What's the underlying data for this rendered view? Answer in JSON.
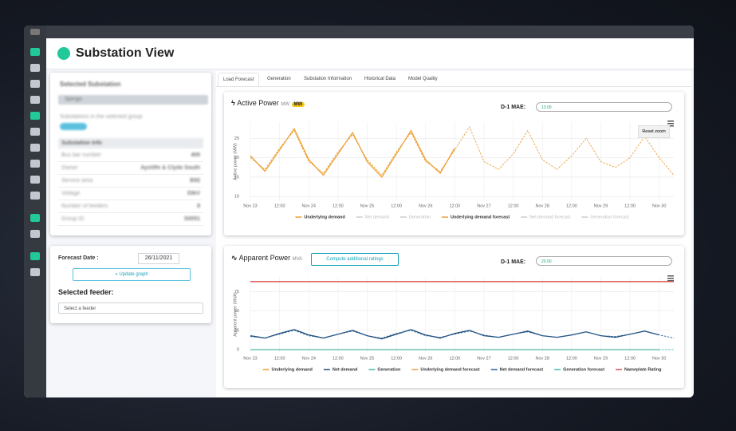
{
  "header": {
    "title": "Substation View"
  },
  "substation_panel": {
    "title": "Selected Substation",
    "dropdown": "Spingo",
    "note": "Substations in the selected group",
    "tag": "Spingo",
    "info_title": "Substation Info",
    "rows": [
      [
        "Bus bar number",
        "400"
      ],
      [
        "Owner",
        "Aycliffe & Clyde South"
      ],
      [
        "Service area",
        "B92"
      ],
      [
        "Voltage",
        "33kV"
      ],
      [
        "Number of feeders",
        "8"
      ],
      [
        "Group ID",
        "S0051"
      ]
    ]
  },
  "forecast_panel": {
    "date_label": "Forecast Date :",
    "date": "26/11/2021",
    "button": "» Update graph",
    "feeder_label": "Selected feeder:",
    "feeder_placeholder": "Select a feeder"
  },
  "tabs": [
    "Load Forecast",
    "Generation",
    "Substation Information",
    "Historical Data",
    "Model Quality"
  ],
  "chart_data": [
    {
      "type": "line",
      "title": "Active Power",
      "unit": "MW",
      "badge": "MW",
      "mae_label": "D-1 MAE:",
      "mae_value": "13.00",
      "reset": "Reset zoom",
      "y_label": "Active power (MW)",
      "grid": true,
      "categories": [
        "Nov 23",
        null,
        "12:00",
        null,
        "Nov 24",
        null,
        "12:00",
        null,
        "Nov 25",
        null,
        "12:00",
        null,
        "Nov 26",
        null,
        "12:00",
        null,
        "Nov 27",
        null,
        "12:00",
        null,
        "Nov 28",
        null,
        "12:00",
        null,
        "Nov 29",
        null,
        "12:00",
        null,
        "Nov 30",
        null
      ],
      "ylim": [
        8.8,
        29.2
      ],
      "yticks": [
        10,
        15,
        20,
        25
      ],
      "series": [
        {
          "name": "Underlying demand",
          "color": "#f0a030",
          "dashed": false,
          "visible": true,
          "values": [
            20.5,
            16.5,
            22,
            27.5,
            19.5,
            15.5,
            21,
            26.5,
            19,
            15,
            21,
            27,
            19.5,
            16,
            22.5,
            null,
            null,
            null,
            null,
            null,
            null,
            null,
            null,
            null,
            null,
            null,
            null,
            null,
            null,
            null
          ]
        },
        {
          "name": "Net demand",
          "color": "#1f4e79",
          "dashed": false,
          "visible": false,
          "values": [
            null,
            null,
            null,
            null,
            null,
            null,
            null,
            null,
            null,
            null,
            null,
            null,
            null,
            null,
            null,
            null,
            null,
            null,
            null,
            null,
            null,
            null,
            null,
            null,
            null,
            null,
            null,
            null,
            null,
            null
          ]
        },
        {
          "name": "Generation",
          "color": "#4bb8a9",
          "dashed": false,
          "visible": false,
          "values": [
            null,
            null,
            null,
            null,
            null,
            null,
            null,
            null,
            null,
            null,
            null,
            null,
            null,
            null,
            null,
            null,
            null,
            null,
            null,
            null,
            null,
            null,
            null,
            null,
            null,
            null,
            null,
            null,
            null,
            null
          ]
        },
        {
          "name": "Underlying demand forecast",
          "color": "#e8a040",
          "dashed": true,
          "visible": true,
          "values": [
            20,
            17,
            22.5,
            27,
            19,
            16,
            21.5,
            26,
            19.5,
            15.5,
            21.5,
            26.5,
            19,
            16.5,
            22,
            28,
            19,
            17,
            21,
            27,
            19.5,
            17,
            20.5,
            25,
            19,
            17.5,
            20,
            25.5,
            20,
            15.5
          ]
        },
        {
          "name": "Net demand forecast",
          "color": "#1f4e79",
          "dashed": true,
          "visible": false,
          "values": [
            null,
            null,
            null,
            null,
            null,
            null,
            null,
            null,
            null,
            null,
            null,
            null,
            null,
            null,
            null,
            null,
            null,
            null,
            null,
            null,
            null,
            null,
            null,
            null,
            null,
            null,
            null,
            null,
            null,
            null
          ]
        },
        {
          "name": "Generation forecast",
          "color": "#4bb8a9",
          "dashed": true,
          "visible": false,
          "values": [
            null,
            null,
            null,
            null,
            null,
            null,
            null,
            null,
            null,
            null,
            null,
            null,
            null,
            null,
            null,
            null,
            null,
            null,
            null,
            null,
            null,
            null,
            null,
            null,
            null,
            null,
            null,
            null,
            null,
            null
          ]
        }
      ]
    },
    {
      "type": "line",
      "title": "Apparent Power",
      "unit": "MVA",
      "button": "Compute additional ratings",
      "mae_label": "D-1 MAE:",
      "mae_value": "20.00",
      "y_label": "Apparent power (MVA)",
      "grid": true,
      "categories": [
        "Nov 23",
        null,
        "12:00",
        null,
        "Nov 24",
        null,
        "12:00",
        null,
        "Nov 25",
        null,
        "12:00",
        null,
        "Nov 26",
        null,
        "12:00",
        null,
        "Nov 27",
        null,
        "12:00",
        null,
        "Nov 28",
        null,
        "12:00",
        null,
        "Nov 29",
        null,
        "12:00",
        null,
        "Nov 30",
        null
      ],
      "ylim": [
        -3,
        94
      ],
      "yticks": [
        0,
        25,
        50,
        75
      ],
      "series": [
        {
          "name": "Underlying demand",
          "color": "#f0a030",
          "dashed": false,
          "visible": true,
          "values": [
            null,
            null,
            null,
            null,
            null,
            null,
            null,
            null,
            null,
            null,
            null,
            null,
            null,
            null,
            null,
            null,
            null,
            null,
            null,
            null,
            null,
            null,
            null,
            null,
            null,
            null,
            null,
            null,
            null,
            null
          ]
        },
        {
          "name": "Net demand",
          "color": "#1f4e79",
          "dashed": false,
          "visible": true,
          "values": [
            18,
            15,
            21,
            26,
            19,
            15,
            20,
            25,
            18,
            14,
            20,
            26,
            19,
            15,
            21,
            25,
            18,
            16,
            20,
            24,
            18,
            16,
            19,
            23,
            18,
            16,
            20,
            24,
            19,
            null
          ]
        },
        {
          "name": "Generation",
          "color": "#4bb8a9",
          "dashed": false,
          "visible": true,
          "values": [
            0,
            0,
            0,
            0,
            0,
            0,
            0,
            0,
            0,
            0,
            0,
            0,
            0,
            0,
            0,
            0,
            0,
            0,
            0,
            0,
            0,
            0,
            0,
            0,
            0,
            0,
            0,
            0,
            0,
            null
          ]
        },
        {
          "name": "Underlying demand forecast",
          "color": "#e8a040",
          "dashed": true,
          "visible": true,
          "values": [
            null,
            null,
            null,
            null,
            null,
            null,
            null,
            null,
            null,
            null,
            null,
            null,
            null,
            null,
            null,
            null,
            null,
            null,
            null,
            null,
            null,
            null,
            null,
            null,
            null,
            null,
            null,
            null,
            null,
            null
          ]
        },
        {
          "name": "Net demand forecast",
          "color": "#2a6099",
          "dashed": true,
          "visible": true,
          "values": [
            17,
            15,
            20,
            25,
            18,
            15,
            20,
            24,
            18,
            15,
            21,
            25,
            18,
            16,
            20,
            24,
            19,
            16,
            20,
            23,
            18,
            16,
            19,
            23,
            18,
            17,
            20,
            24,
            19,
            15
          ]
        },
        {
          "name": "Generation forecast",
          "color": "#4bb8a9",
          "dashed": true,
          "visible": true,
          "values": [
            0,
            0,
            0,
            0,
            0,
            0,
            0,
            0,
            0,
            0,
            0,
            0,
            0,
            0,
            0,
            0,
            0,
            0,
            0,
            0,
            0,
            0,
            0,
            0,
            0,
            0,
            0,
            0,
            0,
            0
          ]
        },
        {
          "name": "Nameplate Rating",
          "color": "#d9534f",
          "dashed": false,
          "visible": true,
          "values": [
            88,
            88,
            88,
            88,
            88,
            88,
            88,
            88,
            88,
            88,
            88,
            88,
            88,
            88,
            88,
            88,
            88,
            88,
            88,
            88,
            88,
            88,
            88,
            88,
            88,
            88,
            88,
            88,
            88,
            88
          ]
        }
      ]
    }
  ]
}
